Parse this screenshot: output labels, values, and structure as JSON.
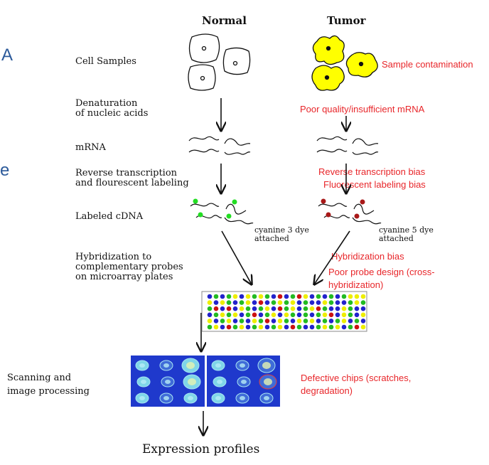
{
  "colors": {
    "issue_red": "#e8262a",
    "tumor_yellow": "#ffff00",
    "green_dot": "#22dd22",
    "red_dot": "#a81818",
    "edge_blue": "#2c5a9a",
    "array_dots": [
      "#2222cc",
      "#22bb22",
      "#eeee00",
      "#cc1111"
    ]
  },
  "edge_fragments": [
    "A",
    "e"
  ],
  "columns": {
    "normal": "Normal",
    "tumor": "Tumor"
  },
  "steps": {
    "cell_samples": "Cell Samples",
    "denaturation_1": "Denaturation",
    "denaturation_2": "of nucleic acids",
    "mrna": "mRNA",
    "reverse_1": "Reverse transcription",
    "reverse_2": "and flourescent labeling",
    "labeled": "Labeled cDNA",
    "hybrid_1": "Hybridization to",
    "hybrid_2": "complementary probes",
    "hybrid_3": "on microarray plates",
    "scan_1": "Scanning and",
    "scan_2": "image processing",
    "output": "Expression profiles"
  },
  "dyes": {
    "normal_1": "cyanine 3 dye",
    "normal_2": "attached",
    "tumor_1": "cyanine 5 dye",
    "tumor_2": "attached"
  },
  "issues": {
    "contamination": "Sample contamination",
    "quality": "Poor quality/insufficient mRNA",
    "rt_bias": "Reverse transcription bias",
    "label_bias": "Fluorescent labeling bias",
    "hyb_bias": "Hybridization bias",
    "probe_1": "Poor probe design (cross-",
    "probe_2": "hybridization)",
    "chips_1": "Defective chips (scratches,",
    "chips_2": "degradation)"
  },
  "microarray_grid": [
    "BGBGYBYGYGBRBGRYBGBGBGYYY",
    "YBYGBGYBRBGYGYBGBBYGBBGYG",
    "GRBRBYGBGYBRGYBGYRGBBYGBB",
    "BGYGYBGRBGYBYGBGBGYRBYGBY",
    "YBGYBGBYGRBYGBYGYBGBGYBGB",
    "GYBRGYBGYBGYBRGBBGYGYBGRY"
  ]
}
